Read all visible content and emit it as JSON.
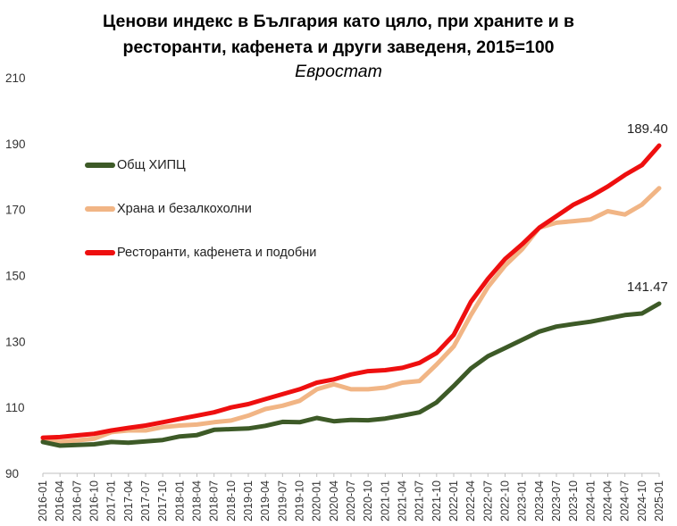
{
  "title_line1": "Ценови индекс в България като цяло, при храните и в",
  "title_line2": "ресторанти, кафенета и други заведеня, 2015=100",
  "subtitle": "Евростат",
  "colors": {
    "overall": "#3d5a27",
    "food": "#f1b585",
    "restaurants": "#ee0f0f"
  },
  "chart_data": {
    "type": "line",
    "ylim": [
      90,
      210
    ],
    "yticks": [
      90,
      110,
      130,
      150,
      170,
      190,
      210
    ],
    "grid": false,
    "legend": "left, inside plot",
    "x_tick_labels": [
      "2016-01",
      "2016-04",
      "2016-07",
      "2016-10",
      "2017-01",
      "2017-04",
      "2017-07",
      "2017-10",
      "2018-01",
      "2018-04",
      "2018-07",
      "2018-10",
      "2019-01",
      "2019-04",
      "2019-07",
      "2019-10",
      "2020-01",
      "2020-04",
      "2020-07",
      "2020-10",
      "2021-01",
      "2021-04",
      "2021-07",
      "2021-10",
      "2022-01",
      "2022-04",
      "2022-07",
      "2022-10",
      "2023-01",
      "2023-04",
      "2023-07",
      "2023-10",
      "2024-01",
      "2024-04",
      "2024-07",
      "2024-10",
      "2025-01"
    ],
    "x_start": "2016-01",
    "x_end": "2025-01",
    "series": [
      {
        "name": "Общ ХИПЦ",
        "points": [
          [
            "2016-01",
            99.5
          ],
          [
            "2016-04",
            98.4
          ],
          [
            "2016-07",
            98.6
          ],
          [
            "2016-10",
            98.8
          ],
          [
            "2017-01",
            99.5
          ],
          [
            "2017-04",
            99.3
          ],
          [
            "2017-07",
            99.7
          ],
          [
            "2017-10",
            100.1
          ],
          [
            "2018-01",
            101.2
          ],
          [
            "2018-04",
            101.6
          ],
          [
            "2018-07",
            103.2
          ],
          [
            "2018-10",
            103.4
          ],
          [
            "2019-01",
            103.6
          ],
          [
            "2019-04",
            104.4
          ],
          [
            "2019-07",
            105.6
          ],
          [
            "2019-10",
            105.5
          ],
          [
            "2020-01",
            106.8
          ],
          [
            "2020-04",
            105.8
          ],
          [
            "2020-07",
            106.2
          ],
          [
            "2020-10",
            106.1
          ],
          [
            "2021-01",
            106.6
          ],
          [
            "2021-04",
            107.5
          ],
          [
            "2021-07",
            108.5
          ],
          [
            "2021-10",
            111.5
          ],
          [
            "2022-01",
            116.5
          ],
          [
            "2022-04",
            121.8
          ],
          [
            "2022-07",
            125.5
          ],
          [
            "2022-10",
            128.0
          ],
          [
            "2023-01",
            130.5
          ],
          [
            "2023-04",
            133.0
          ],
          [
            "2023-07",
            134.5
          ],
          [
            "2023-10",
            135.3
          ],
          [
            "2024-01",
            136.0
          ],
          [
            "2024-04",
            137.0
          ],
          [
            "2024-07",
            138.0
          ],
          [
            "2024-10",
            138.5
          ],
          [
            "2025-01",
            141.47
          ]
        ],
        "end_label": "141.47"
      },
      {
        "name": "Храна и безалкохолни",
        "points": [
          [
            "2016-01",
            100.0
          ],
          [
            "2016-04",
            99.5
          ],
          [
            "2016-07",
            100.0
          ],
          [
            "2016-10",
            100.5
          ],
          [
            "2017-01",
            102.5
          ],
          [
            "2017-04",
            103.0
          ],
          [
            "2017-07",
            103.0
          ],
          [
            "2017-10",
            104.0
          ],
          [
            "2018-01",
            104.5
          ],
          [
            "2018-04",
            104.8
          ],
          [
            "2018-07",
            105.5
          ],
          [
            "2018-10",
            106.0
          ],
          [
            "2019-01",
            107.5
          ],
          [
            "2019-04",
            109.5
          ],
          [
            "2019-07",
            110.5
          ],
          [
            "2019-10",
            112.0
          ],
          [
            "2020-01",
            115.5
          ],
          [
            "2020-04",
            117.0
          ],
          [
            "2020-07",
            115.5
          ],
          [
            "2020-10",
            115.5
          ],
          [
            "2021-01",
            116.0
          ],
          [
            "2021-04",
            117.5
          ],
          [
            "2021-07",
            118.0
          ],
          [
            "2021-10",
            123.0
          ],
          [
            "2022-01",
            128.5
          ],
          [
            "2022-04",
            138.0
          ],
          [
            "2022-07",
            146.5
          ],
          [
            "2022-10",
            153.0
          ],
          [
            "2023-01",
            158.0
          ],
          [
            "2023-04",
            164.5
          ],
          [
            "2023-07",
            166.0
          ],
          [
            "2023-10",
            166.5
          ],
          [
            "2024-01",
            167.0
          ],
          [
            "2024-04",
            169.5
          ],
          [
            "2024-07",
            168.5
          ],
          [
            "2024-10",
            171.5
          ],
          [
            "2025-01",
            176.5
          ]
        ]
      },
      {
        "name": "Ресторанти, кафенета и подобни",
        "points": [
          [
            "2016-01",
            100.8
          ],
          [
            "2016-04",
            101.0
          ],
          [
            "2016-07",
            101.5
          ],
          [
            "2016-10",
            102.0
          ],
          [
            "2017-01",
            103.0
          ],
          [
            "2017-04",
            103.8
          ],
          [
            "2017-07",
            104.5
          ],
          [
            "2017-10",
            105.5
          ],
          [
            "2018-01",
            106.5
          ],
          [
            "2018-04",
            107.5
          ],
          [
            "2018-07",
            108.5
          ],
          [
            "2018-10",
            110.0
          ],
          [
            "2019-01",
            111.0
          ],
          [
            "2019-04",
            112.5
          ],
          [
            "2019-07",
            114.0
          ],
          [
            "2019-10",
            115.5
          ],
          [
            "2020-01",
            117.5
          ],
          [
            "2020-04",
            118.5
          ],
          [
            "2020-07",
            120.0
          ],
          [
            "2020-10",
            121.0
          ],
          [
            "2021-01",
            121.3
          ],
          [
            "2021-04",
            122.0
          ],
          [
            "2021-07",
            123.5
          ],
          [
            "2021-10",
            126.5
          ],
          [
            "2022-01",
            132.0
          ],
          [
            "2022-04",
            142.0
          ],
          [
            "2022-07",
            149.0
          ],
          [
            "2022-10",
            155.0
          ],
          [
            "2023-01",
            159.5
          ],
          [
            "2023-04",
            164.5
          ],
          [
            "2023-07",
            168.0
          ],
          [
            "2023-10",
            171.5
          ],
          [
            "2024-01",
            174.0
          ],
          [
            "2024-04",
            177.0
          ],
          [
            "2024-07",
            180.5
          ],
          [
            "2024-10",
            183.5
          ],
          [
            "2025-01",
            189.4
          ]
        ],
        "end_label": "189.40"
      }
    ]
  }
}
